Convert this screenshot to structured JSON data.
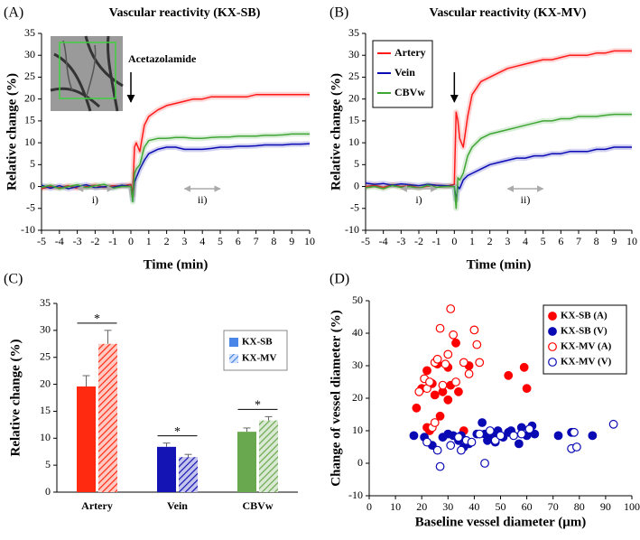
{
  "chart_data": [
    {
      "type": "line",
      "panel": "(A)",
      "title": "Vascular reactivity (KX-SB)",
      "xlabel": "Time (min)",
      "ylabel": "Relative change (%)",
      "annotation": "Acetazolamide",
      "event_x": 0,
      "intervals": [
        {
          "label": "i)",
          "range": [
            -3,
            -1
          ]
        },
        {
          "label": "ii)",
          "range": [
            3,
            5
          ]
        }
      ],
      "x": [
        -5,
        -4.5,
        -4,
        -3.5,
        -3,
        -2.5,
        -2,
        -1.5,
        -1,
        -0.5,
        0,
        0.1,
        0.2,
        0.3,
        0.5,
        0.75,
        1,
        1.5,
        2,
        2.5,
        3,
        3.5,
        4,
        4.5,
        5,
        5.5,
        6,
        6.5,
        7,
        7.5,
        8,
        8.5,
        9,
        9.5,
        10
      ],
      "series": [
        {
          "color": "#ff1a1a",
          "values": [
            -0.5,
            0,
            -0.3,
            0.2,
            -0.4,
            0,
            0.3,
            -0.2,
            0.2,
            0.1,
            0.5,
            -2,
            9,
            10,
            8,
            14,
            16,
            17.5,
            18.5,
            19,
            19.5,
            20,
            20,
            20.5,
            20.5,
            20.5,
            20.5,
            20.5,
            21,
            21,
            21,
            21,
            21,
            21,
            21
          ]
        },
        {
          "color": "#0a0ab4",
          "values": [
            0.3,
            -0.4,
            0.2,
            -0.5,
            0,
            0.4,
            -0.3,
            0,
            -0.2,
            0.3,
            0,
            -3,
            1,
            2,
            4,
            6,
            7.5,
            8.5,
            9,
            9,
            8.5,
            8.5,
            8.5,
            8.7,
            9,
            9,
            9.2,
            9.2,
            9.3,
            9.5,
            9.5,
            9.5,
            9.7,
            9.7,
            9.8
          ]
        },
        {
          "color": "#3fa535",
          "values": [
            -0.2,
            0.3,
            -0.5,
            0,
            0.4,
            -0.3,
            0.2,
            0.5,
            -0.4,
            0,
            0,
            -3.5,
            3,
            4,
            5,
            9,
            10.5,
            11,
            11,
            11.2,
            11.2,
            11,
            11,
            11.2,
            11.3,
            11.3,
            11.5,
            11.5,
            11.5,
            11.7,
            11.7,
            11.8,
            12,
            12,
            12
          ]
        }
      ],
      "xlim": [
        -5,
        10
      ],
      "xticks": [
        -5,
        -4,
        -3,
        -2,
        -1,
        0,
        1,
        2,
        3,
        4,
        5,
        6,
        7,
        8,
        9,
        10
      ],
      "ylim": [
        -10,
        35
      ],
      "yticks": [
        -10,
        -5,
        0,
        5,
        10,
        15,
        20,
        25,
        30,
        35
      ],
      "legend": false
    },
    {
      "type": "line",
      "panel": "(B)",
      "title": "Vascular reactivity (KX-MV)",
      "xlabel": "Time (min)",
      "ylabel": "Relative change (%)",
      "event_x": 0,
      "intervals": [
        {
          "label": "i)",
          "range": [
            -3,
            -1
          ]
        },
        {
          "label": "ii)",
          "range": [
            3,
            5
          ]
        }
      ],
      "x": [
        -5,
        -4.5,
        -4,
        -3.5,
        -3,
        -2.5,
        -2,
        -1.5,
        -1,
        -0.5,
        0,
        0.1,
        0.2,
        0.3,
        0.5,
        0.75,
        1,
        1.5,
        2,
        2.5,
        3,
        3.5,
        4,
        4.5,
        5,
        5.5,
        6,
        6.5,
        7,
        7.5,
        8,
        8.5,
        9,
        9.5,
        10
      ],
      "series": [
        {
          "name": "Artery",
          "color": "#ff1a1a",
          "values": [
            0,
            0.3,
            -0.2,
            0.4,
            0,
            0.2,
            -0.3,
            0.1,
            0.3,
            0,
            0.5,
            17,
            15,
            11,
            9,
            16,
            21,
            24,
            25,
            26,
            27,
            27.5,
            28,
            28.5,
            29,
            29,
            29.5,
            30,
            30,
            30,
            30.5,
            30.5,
            31,
            31,
            31
          ]
        },
        {
          "name": "Vein",
          "color": "#0a0ab4",
          "values": [
            0.8,
            0.5,
            0.7,
            0.3,
            0.6,
            0.4,
            0.2,
            0.5,
            0.3,
            0.2,
            0,
            -3,
            0,
            -0.5,
            1.5,
            2.5,
            3,
            4,
            5,
            5.5,
            6,
            6.5,
            6.5,
            7,
            7,
            7.5,
            7.5,
            8,
            8,
            8,
            8.5,
            8.5,
            9,
            9,
            9
          ]
        },
        {
          "name": "CBVw",
          "color": "#3fa535",
          "values": [
            -0.3,
            0,
            -0.5,
            0.2,
            -0.2,
            0,
            -0.4,
            0.3,
            -0.2,
            0,
            0,
            -5,
            2,
            1.5,
            3,
            7,
            9,
            11,
            12,
            12.5,
            13,
            13.5,
            14,
            14.5,
            15,
            15,
            15.5,
            15.5,
            16,
            16,
            16,
            16.3,
            16.5,
            16.5,
            16.5
          ]
        }
      ],
      "xlim": [
        -5,
        10
      ],
      "xticks": [
        -5,
        -4,
        -3,
        -2,
        -1,
        0,
        1,
        2,
        3,
        4,
        5,
        6,
        7,
        8,
        9,
        10
      ],
      "ylim": [
        -10,
        35
      ],
      "yticks": [
        -10,
        -5,
        0,
        5,
        10,
        15,
        20,
        25,
        30,
        35
      ],
      "legend": true
    },
    {
      "type": "bar",
      "panel": "(C)",
      "ylabel": "Relative change (%)",
      "categories": [
        "Artery",
        "Vein",
        "CBVw"
      ],
      "bar_colors": [
        "#ff2a10",
        "#1414b4",
        "#6aa84f"
      ],
      "significance": [
        "*",
        "*",
        "*"
      ],
      "series": [
        {
          "name": "KX-SB",
          "color": "#4a86e8",
          "hatch": false,
          "values": [
            19.6,
            8.4,
            11.2
          ],
          "errors": [
            2.0,
            0.7,
            0.7
          ]
        },
        {
          "name": "KX-MV",
          "color": "#4a86e8",
          "hatch": true,
          "values": [
            27.5,
            6.5,
            13.3
          ],
          "errors": [
            2.5,
            0.5,
            0.7
          ]
        }
      ],
      "ylim": [
        0,
        35
      ],
      "yticks": [
        0,
        5,
        10,
        15,
        20,
        25,
        30,
        35
      ],
      "legend": true
    },
    {
      "type": "scatter",
      "panel": "(D)",
      "xlabel": "Baseline vessel diameter (μm)",
      "ylabel": "Change of vessel diameter (%)",
      "series": [
        {
          "name": "KX-SB (A)",
          "color": "#ff0000",
          "filled": true,
          "x": [
            18,
            20,
            22,
            22,
            23,
            24,
            25,
            26,
            27,
            28,
            30,
            30,
            31,
            33,
            34,
            36,
            38,
            53,
            59,
            60
          ],
          "values": [
            17,
            23,
            28.5,
            11,
            10,
            24.5,
            21,
            30.5,
            14.5,
            22,
            29.5,
            19.5,
            24,
            37,
            22,
            10,
            30,
            27,
            29.5,
            23
          ]
        },
        {
          "name": "KX-SB (V)",
          "color": "#0a0ab4",
          "filled": true,
          "x": [
            17,
            21,
            24,
            28,
            30,
            32,
            34,
            35,
            36,
            38,
            41,
            43,
            44,
            45,
            47,
            48,
            49,
            51,
            53,
            54,
            57,
            58,
            60,
            62,
            63,
            72,
            77,
            85
          ],
          "values": [
            8.5,
            8,
            5.5,
            8,
            9,
            8.5,
            7,
            8.5,
            5,
            6,
            9,
            12.5,
            9,
            7,
            8.5,
            6.5,
            10,
            8,
            9.5,
            10,
            6,
            11,
            8.5,
            11.5,
            9,
            8.5,
            9.5,
            8.5
          ]
        },
        {
          "name": "KX-MV (A)",
          "color": "#ff0000",
          "filled": false,
          "x": [
            19,
            21,
            22,
            23,
            24,
            25,
            25,
            26,
            27,
            28,
            29,
            30,
            31,
            32,
            33,
            36,
            38,
            40,
            41,
            42
          ],
          "values": [
            22,
            26,
            23,
            25,
            11,
            31,
            12.5,
            32,
            41.5,
            24,
            30.5,
            33.5,
            47.5,
            39.5,
            25,
            31,
            27.5,
            41,
            36.5,
            31
          ]
        },
        {
          "name": "KX-MV (V)",
          "color": "#0a0ab4",
          "filled": false,
          "x": [
            22,
            26,
            27,
            31,
            34,
            35,
            37,
            39,
            42,
            44,
            46,
            48,
            50,
            55,
            58,
            61,
            77,
            78,
            79,
            93
          ],
          "values": [
            6.5,
            4,
            -1,
            5.5,
            8,
            4,
            7,
            6.5,
            9,
            0,
            10,
            7,
            8.5,
            8.5,
            9,
            10.5,
            4.5,
            9.5,
            5,
            12
          ]
        }
      ],
      "xlim": [
        0,
        100
      ],
      "xticks": [
        0,
        10,
        20,
        30,
        40,
        50,
        60,
        70,
        80,
        90,
        100
      ],
      "ylim": [
        -10,
        50
      ],
      "yticks": [
        -10,
        0,
        10,
        20,
        30,
        40,
        50
      ],
      "legend": true
    }
  ]
}
